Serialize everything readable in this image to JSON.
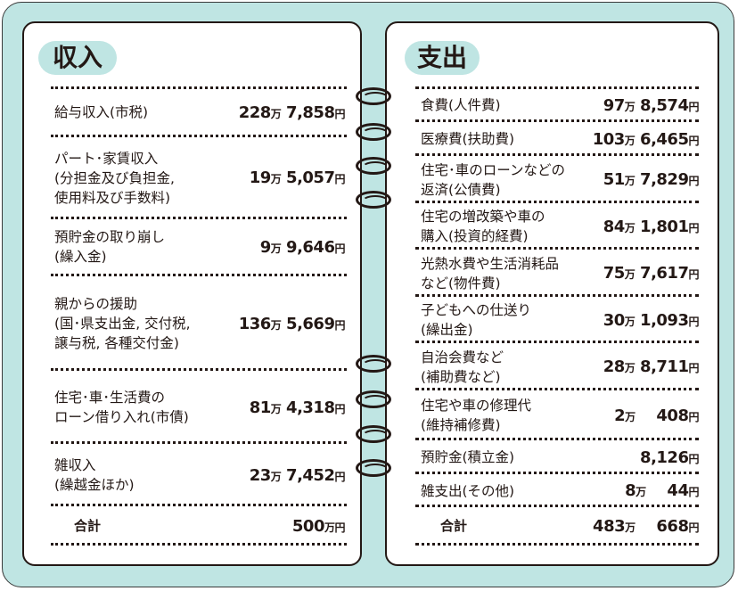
{
  "income": {
    "title": "収入",
    "rows": [
      {
        "label": "給与収入(市税)",
        "man": "228",
        "rest": "7,858"
      },
      {
        "label": "パート･家賃収入\n(分担金及び負担金,\n使用料及び手数料)",
        "man": "19",
        "rest": "5,057"
      },
      {
        "label": "預貯金の取り崩し\n(繰入金)",
        "man": "9",
        "rest": "9,646"
      },
      {
        "label": "親からの援助\n(国･県支出金, 交付税,\n譲与税, 各種交付金)",
        "man": "136",
        "rest": "5,669"
      },
      {
        "label": "住宅･車･生活費の\nローン借り入れ(市債)",
        "man": "81",
        "rest": "4,318"
      },
      {
        "label": "雑収入\n(繰越金ほか)",
        "man": "23",
        "rest": "7,452"
      }
    ],
    "total": {
      "label": "合計",
      "man": "500",
      "rest": ""
    }
  },
  "expense": {
    "title": "支出",
    "rows": [
      {
        "label": "食費(人件費)",
        "man": "97",
        "rest": "8,574"
      },
      {
        "label": "医療費(扶助費)",
        "man": "103",
        "rest": "6,465"
      },
      {
        "label": "住宅･車のローンなどの\n返済(公債費)",
        "man": "51",
        "rest": "7,829"
      },
      {
        "label": "住宅の増改築や車の\n購入(投資的経費)",
        "man": "84",
        "rest": "1,801"
      },
      {
        "label": "光熱水費や生活消耗品\nなど(物件費)",
        "man": "75",
        "rest": "7,617"
      },
      {
        "label": "子どもへの仕送り\n(繰出金)",
        "man": "30",
        "rest": "1,093"
      },
      {
        "label": "自治会費など\n(補助費など)",
        "man": "28",
        "rest": "8,711"
      },
      {
        "label": "住宅や車の修理代\n(維持補修費)",
        "man": "2",
        "rest": "408"
      },
      {
        "label": "預貯金(積立金)",
        "man": "",
        "rest": "8,126"
      },
      {
        "label": "雑支出(その他)",
        "man": "8",
        "rest": "44"
      }
    ],
    "total": {
      "label": "合計",
      "man": "483",
      "rest": "668"
    }
  },
  "units": {
    "man": "万",
    "yen": "円"
  }
}
